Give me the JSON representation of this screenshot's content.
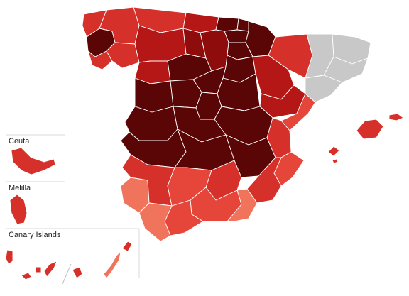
{
  "insets": {
    "ceuta_label": "Ceuta",
    "melilla_label": "Melilla",
    "canary_label": "Canary Islands"
  },
  "legend_colors": {
    "darkest": "#5a0606",
    "dark": "#8e0c0c",
    "medium_dark": "#b51616",
    "medium": "#d6302a",
    "light": "#e6463a",
    "lightest": "#f0735c",
    "no_data": "#c8c8c8"
  }
}
